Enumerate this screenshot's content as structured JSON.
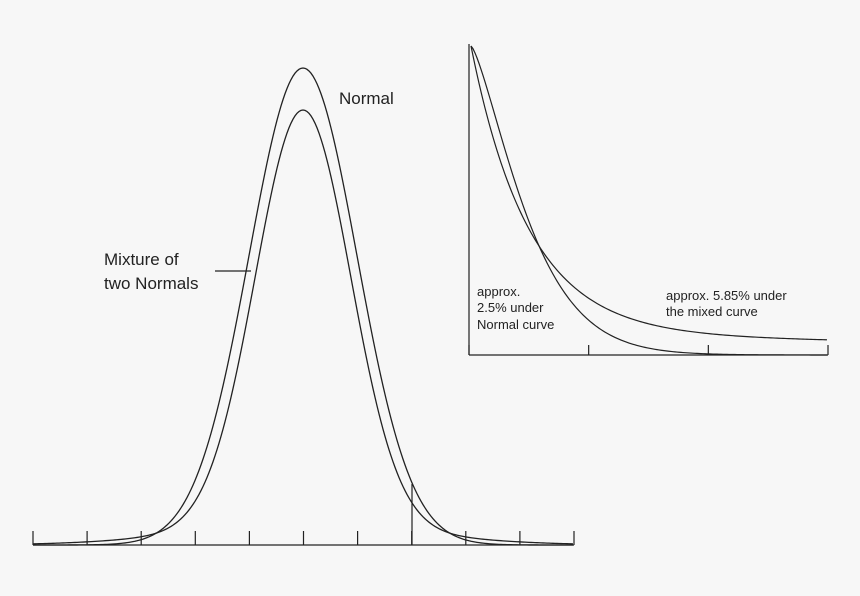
{
  "main_plot": {
    "curve_names": [
      "Normal",
      "Mixture of two Normals"
    ],
    "labels": {
      "normal": "Normal",
      "mixture_line1": "Mixture of",
      "mixture_line2": "two Normals"
    },
    "tick_count": 11
  },
  "inset_plot": {
    "tick_count": 4,
    "annotations": {
      "normal_line1": "approx.",
      "normal_line2": "2.5% under",
      "normal_line3": "Normal curve",
      "mixed_line1": "approx. 5.85% under",
      "mixed_line2": "the mixed curve"
    }
  },
  "colors": {
    "line": "#222222",
    "background": "#f7f7f7"
  }
}
